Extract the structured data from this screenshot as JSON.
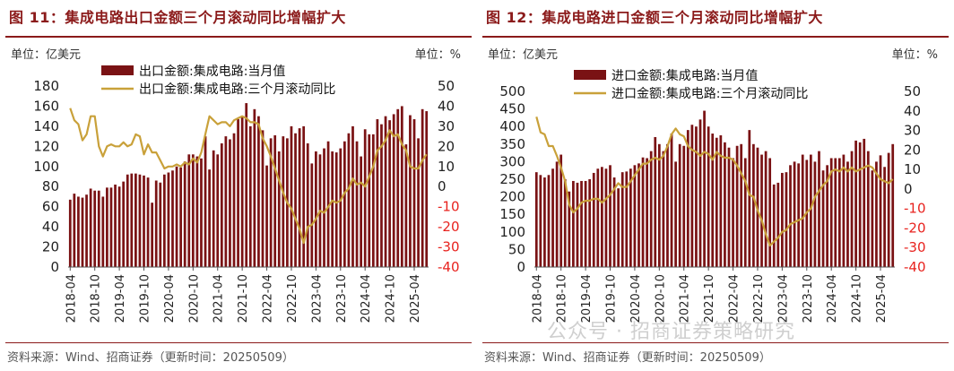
{
  "watermark": "公众号 · 招商证券策略研究",
  "charts": [
    {
      "title": "图 11：集成电路出口金额三个月滚动同比增幅扩大",
      "unit_left": "单位：亿美元",
      "unit_right": "单位：%",
      "source": "资料来源：Wind、招商证券（更新时间：20250509）",
      "legend_bar": "出口金额:集成电路:当月值",
      "legend_line": "出口金额:集成电路:三个月滚动同比",
      "left_ticks": [
        "0",
        "20",
        "40",
        "60",
        "80",
        "100",
        "120",
        "140",
        "160",
        "180"
      ],
      "right_ticks": [
        "-40",
        "-30",
        "-20",
        "-10",
        "0",
        "10",
        "20",
        "30",
        "40",
        "50"
      ],
      "x_ticks": [
        "2018-04",
        "2018-10",
        "2019-04",
        "2019-10",
        "2020-04",
        "2020-10",
        "2021-04",
        "2021-10",
        "2022-04",
        "2022-10",
        "2023-04",
        "2023-10",
        "2024-04",
        "2024-10",
        "2025-04"
      ]
    },
    {
      "title": "图 12：集成电路进口金额三个月滚动同比增幅扩大",
      "unit_left": "单位：亿美元",
      "unit_right": "单位：%",
      "source": "资料来源：Wind、招商证券（更新时间：20250509）",
      "legend_bar": "进口金额:集成电路:当月值",
      "legend_line": "进口金额:集成电路:三个月滚动同比",
      "left_ticks": [
        "0",
        "50",
        "100",
        "150",
        "200",
        "250",
        "300",
        "350",
        "400",
        "450",
        "500"
      ],
      "right_ticks": [
        "-40",
        "-30",
        "-20",
        "-10",
        "0",
        "10",
        "20",
        "30",
        "40",
        "50"
      ],
      "x_ticks": [
        "2018-04",
        "2018-10",
        "2019-04",
        "2019-10",
        "2020-04",
        "2020-10",
        "2021-04",
        "2021-10",
        "2022-04",
        "2022-10",
        "2023-04",
        "2023-10",
        "2024-04",
        "2024-10",
        "2025-04"
      ]
    }
  ],
  "chart_data": [
    {
      "type": "bar",
      "title": "集成电路出口金额三个月滚动同比增幅扩大",
      "x_start": "2018-04",
      "x_end": "2025-04",
      "ylim_left": [
        0,
        180
      ],
      "ylim_right": [
        -40,
        50
      ],
      "colors": {
        "bar": "#7a1214",
        "line": "#c9a13a",
        "right_axis": "#e8231f"
      },
      "legend_position": "top-left",
      "grid": false,
      "series": [
        {
          "name": "出口金额:集成电路:当月值",
          "axis": "left",
          "type": "bar",
          "values": [
            67,
            73,
            70,
            69,
            72,
            78,
            76,
            76,
            70,
            79,
            79,
            82,
            80,
            85,
            92,
            93,
            93,
            92,
            91,
            89,
            64,
            86,
            84,
            92,
            94,
            96,
            100,
            99,
            105,
            112,
            112,
            110,
            108,
            130,
            97,
            116,
            112,
            123,
            130,
            127,
            133,
            147,
            150,
            163,
            140,
            157,
            150,
            136,
            101,
            128,
            131,
            115,
            130,
            128,
            140,
            133,
            138,
            140,
            123,
            103,
            115,
            112,
            118,
            125,
            115,
            114,
            118,
            125,
            133,
            140,
            125,
            110,
            137,
            132,
            132,
            147,
            142,
            150,
            146,
            152,
            157,
            160,
            122,
            151,
            147,
            128,
            157,
            155
          ]
        },
        {
          "name": "出口金额:集成电路:三个月滚动同比",
          "axis": "right",
          "type": "line",
          "values": [
            39,
            33,
            31,
            23,
            26,
            35,
            35,
            20,
            15,
            20,
            21,
            20,
            20,
            22,
            20,
            21,
            26,
            25,
            16,
            21,
            17,
            17,
            13,
            9,
            10,
            10,
            11,
            10,
            12,
            11,
            14,
            12,
            17,
            26,
            35,
            33,
            31,
            32,
            32,
            30,
            33,
            34,
            35,
            34,
            32,
            32,
            31,
            24,
            20,
            15,
            9,
            3,
            -3,
            -8,
            -11,
            -16,
            -21,
            -28,
            -20,
            -19,
            -16,
            -12,
            -13,
            -10,
            -7,
            -8,
            -7,
            -3,
            -1,
            4,
            1,
            2,
            0,
            5,
            10,
            18,
            20,
            23,
            28,
            25,
            26,
            21,
            18,
            10,
            9,
            9,
            13,
            16
          ]
        }
      ]
    },
    {
      "type": "bar",
      "title": "集成电路进口金额三个月滚动同比增幅扩大",
      "x_start": "2018-04",
      "x_end": "2025-04",
      "ylim_left": [
        0,
        500
      ],
      "ylim_right": [
        -40,
        50
      ],
      "colors": {
        "bar": "#7a1214",
        "line": "#c9a13a",
        "right_axis": "#e8231f"
      },
      "legend_position": "top-left",
      "grid": false,
      "series": [
        {
          "name": "进口金额:集成电路:当月值",
          "axis": "left",
          "type": "bar",
          "values": [
            270,
            262,
            255,
            262,
            280,
            300,
            320,
            250,
            215,
            245,
            240,
            245,
            245,
            250,
            268,
            280,
            285,
            280,
            290,
            255,
            224,
            270,
            272,
            280,
            290,
            295,
            312,
            310,
            330,
            370,
            350,
            330,
            350,
            380,
            300,
            350,
            345,
            390,
            405,
            400,
            420,
            445,
            400,
            380,
            368,
            375,
            355,
            340,
            310,
            345,
            350,
            310,
            390,
            350,
            340,
            320,
            330,
            310,
            235,
            240,
            268,
            270,
            290,
            300,
            295,
            320,
            305,
            320,
            300,
            330,
            275,
            290,
            310,
            310,
            310,
            320,
            300,
            330,
            360,
            355,
            365,
            330,
            275,
            300,
            318,
            285,
            325,
            350
          ]
        },
        {
          "name": "进口金额:集成电路:三个月滚动同比",
          "axis": "right",
          "type": "line",
          "values": [
            37,
            29,
            28,
            22,
            22,
            17,
            11,
            4,
            -8,
            -12,
            -10,
            -7,
            -6,
            -6,
            -5,
            -5,
            -7,
            -5,
            -3,
            0,
            3,
            1,
            1,
            4,
            7,
            10,
            13,
            13,
            15,
            16,
            15,
            17,
            22,
            28,
            31,
            28,
            27,
            22,
            20,
            19,
            17,
            19,
            18,
            15,
            19,
            17,
            16,
            16,
            15,
            12,
            8,
            4,
            -3,
            -4,
            -11,
            -16,
            -23,
            -29,
            -27,
            -25,
            -22,
            -21,
            -18,
            -17,
            -16,
            -15,
            -12,
            -10,
            -4,
            -1,
            2,
            4,
            9,
            10,
            9,
            11,
            9,
            11,
            9,
            10,
            11,
            12,
            11,
            8,
            5,
            4,
            3,
            5
          ]
        }
      ]
    }
  ]
}
